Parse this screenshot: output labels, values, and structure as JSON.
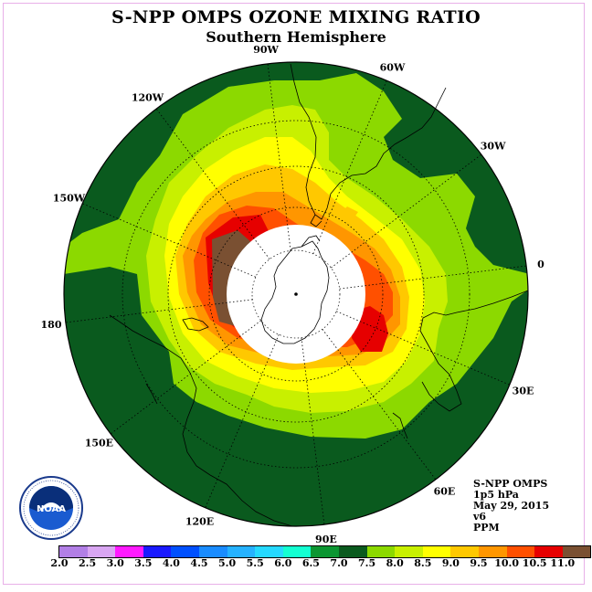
{
  "title": "S-NPP OMPS OZONE MIXING RATIO",
  "subtitle": "Southern Hemisphere",
  "info": {
    "instrument": "S-NPP OMPS",
    "pressure": "1p5 hPa",
    "date": "May 29, 2015",
    "version": "v6",
    "units": "PPM"
  },
  "logo_text": "NOAA",
  "longitude_labels": [
    {
      "text": "90W",
      "angle": 90
    },
    {
      "text": "60W",
      "angle": 60
    },
    {
      "text": "30W",
      "angle": 30
    },
    {
      "text": "0",
      "angle": 0
    },
    {
      "text": "30E",
      "angle": -30
    },
    {
      "text": "60E",
      "angle": -60
    },
    {
      "text": "90E",
      "angle": -90
    },
    {
      "text": "120E",
      "angle": -120
    },
    {
      "text": "150E",
      "angle": -150
    },
    {
      "text": "180",
      "angle": 180
    },
    {
      "text": "150W",
      "angle": 150
    },
    {
      "text": "120W",
      "angle": 120
    }
  ],
  "colorbar": {
    "ticks": [
      "2.0",
      "2.5",
      "3.0",
      "3.5",
      "4.0",
      "4.5",
      "5.0",
      "5.5",
      "6.0",
      "6.5",
      "7.0",
      "7.5",
      "8.0",
      "8.5",
      "9.0",
      "9.5",
      "10.0",
      "10.5",
      "11.0"
    ],
    "colors": [
      "#b27fe6",
      "#d9a6f2",
      "#ff1aff",
      "#1a1aff",
      "#0050ff",
      "#1a8cff",
      "#26b2ff",
      "#26d9ff",
      "#14ffd2",
      "#0c9632",
      "#0a5a1e",
      "#8cd900",
      "#c8f000",
      "#ffff00",
      "#ffc800",
      "#ff9600",
      "#ff5000",
      "#e60000",
      "#7a5032"
    ]
  }
}
